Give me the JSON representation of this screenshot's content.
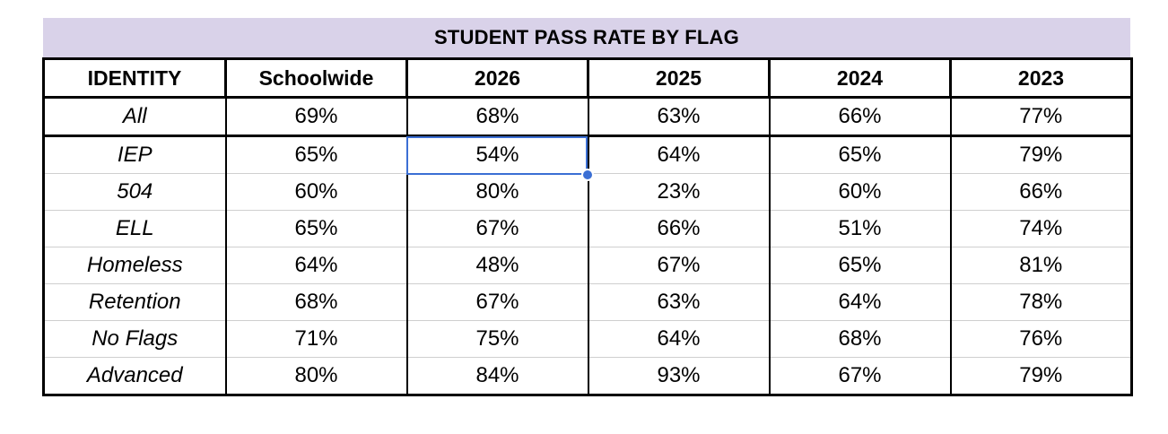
{
  "title": "STUDENT PASS RATE BY FLAG",
  "columns": [
    "IDENTITY",
    "Schoolwide",
    "2026",
    "2025",
    "2024",
    "2023"
  ],
  "rows": [
    [
      "All",
      "69%",
      "68%",
      "63%",
      "66%",
      "77%"
    ],
    [
      "IEP",
      "65%",
      "54%",
      "64%",
      "65%",
      "79%"
    ],
    [
      "504",
      "60%",
      "80%",
      "23%",
      "60%",
      "66%"
    ],
    [
      "ELL",
      "65%",
      "67%",
      "66%",
      "51%",
      "74%"
    ],
    [
      "Homeless",
      "64%",
      "48%",
      "67%",
      "65%",
      "81%"
    ],
    [
      "Retention",
      "68%",
      "67%",
      "63%",
      "64%",
      "78%"
    ],
    [
      "No Flags",
      "71%",
      "75%",
      "64%",
      "68%",
      "76%"
    ],
    [
      "Advanced",
      "80%",
      "84%",
      "93%",
      "67%",
      "79%"
    ]
  ],
  "selection": {
    "row": "IEP",
    "column": "2026",
    "value": "54%"
  },
  "colors": {
    "title_background": "#d9d2e9",
    "selection": "#3b6fd4",
    "border": "#000000"
  }
}
